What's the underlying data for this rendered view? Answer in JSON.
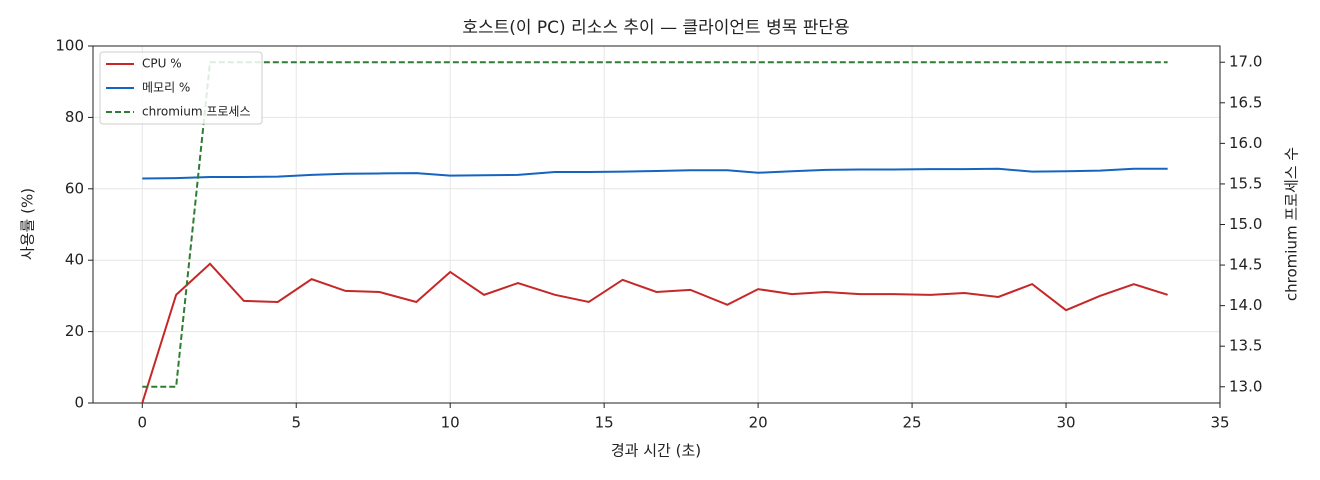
{
  "chart_data": {
    "type": "line",
    "title": "호스트(이 PC) 리소스 추이 — 클라이언트 병목 판단용",
    "x_label": "경과 시간 (초)",
    "y_label": "사용률 (%)",
    "y2_label": "chromium 프로세스 수",
    "x": [
      0,
      1.1,
      2.2,
      3.3,
      4.4,
      5.5,
      6.6,
      7.7,
      8.9,
      10.0,
      11.1,
      12.2,
      13.4,
      14.5,
      15.6,
      16.7,
      17.8,
      19.0,
      20.0,
      21.1,
      22.2,
      23.3,
      24.4,
      25.6,
      26.7,
      27.8,
      28.9,
      30.0,
      31.1,
      32.2,
      33.3
    ],
    "series": [
      {
        "name": "CPU %",
        "color": "#c62828",
        "style": "solid",
        "values": [
          0,
          30.3,
          39.0,
          28.6,
          28.3,
          34.7,
          31.4,
          31.1,
          28.3,
          36.7,
          30.3,
          33.6,
          30.3,
          28.3,
          34.5,
          31.1,
          31.7,
          27.5,
          31.9,
          30.5,
          31.1,
          30.5,
          30.5,
          30.3,
          30.8,
          29.7,
          33.3,
          26.0,
          30.0,
          33.3,
          30.3
        ]
      },
      {
        "name": "메모리 %",
        "color": "#1565c0",
        "style": "solid",
        "values": [
          62.9,
          63.0,
          63.3,
          63.3,
          63.4,
          63.9,
          64.2,
          64.3,
          64.4,
          63.7,
          63.8,
          63.9,
          64.7,
          64.7,
          64.8,
          65.0,
          65.2,
          65.2,
          64.5,
          64.9,
          65.3,
          65.4,
          65.4,
          65.5,
          65.5,
          65.6,
          64.8,
          64.9,
          65.1,
          65.6,
          65.6
        ]
      },
      {
        "name": "chromium 프로세스",
        "color": "#2e7d32",
        "style": "dashed",
        "axis": "y2",
        "values": [
          13,
          13,
          17,
          17,
          17,
          17,
          17,
          17,
          17,
          17,
          17,
          17,
          17,
          17,
          17,
          17,
          17,
          17,
          17,
          17,
          17,
          17,
          17,
          17,
          17,
          17,
          17,
          17,
          17,
          17,
          17
        ]
      }
    ],
    "xlim": [
      -1.6,
      35
    ],
    "xticks": [
      0,
      5,
      10,
      15,
      20,
      25,
      30,
      35
    ],
    "ylim": [
      0,
      100
    ],
    "yticks": [
      0,
      20,
      40,
      60,
      80,
      100
    ],
    "y2lim": [
      12.8,
      17.2
    ],
    "y2ticks": [
      {
        "value": 13,
        "label": "13.0"
      },
      13.5,
      {
        "value": 14,
        "label": "14.0"
      },
      14.5,
      {
        "value": 15,
        "label": "15.0"
      },
      15.5,
      {
        "value": 16,
        "label": "16.0"
      },
      16.5,
      {
        "value": 17,
        "label": "17.0"
      }
    ],
    "grid": true,
    "legend": "upper left"
  }
}
